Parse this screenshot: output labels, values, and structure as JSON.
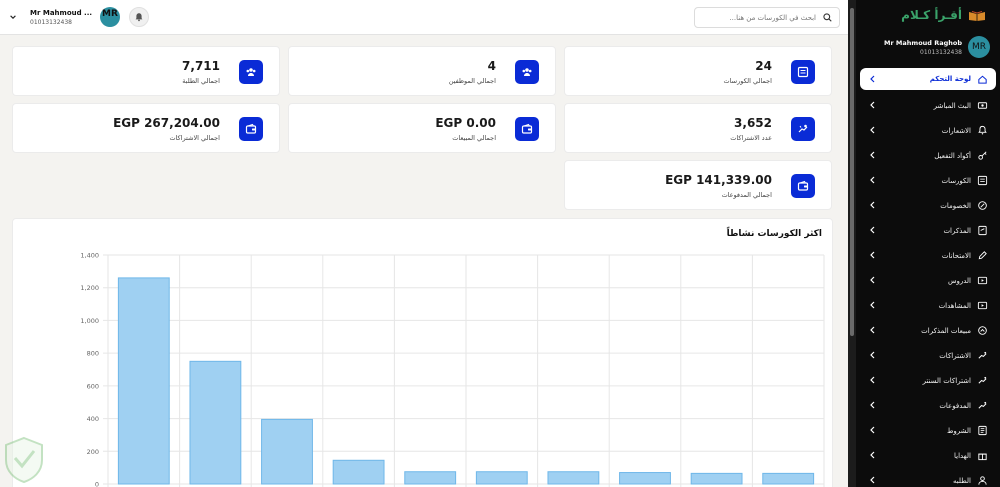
{
  "topbar": {
    "search_placeholder": "ابحث في الكورسات من هنا...",
    "user_name": "Mr Mahmoud ...",
    "user_phone": "01013132438",
    "avatar_initials": "MR"
  },
  "stats": [
    {
      "id": "courses",
      "value": "24",
      "label": "اجمالي الكورسات",
      "icon": "courses-icon"
    },
    {
      "id": "employees",
      "value": "4",
      "label": "اجمالي الموظفين",
      "icon": "users-icon"
    },
    {
      "id": "students",
      "value": "7,711",
      "label": "اجمالي الطلبة",
      "icon": "users-icon"
    },
    {
      "id": "subs-count",
      "value": "3,652",
      "label": "عدد الاشتراكات",
      "icon": "hand-coin-icon"
    },
    {
      "id": "sales",
      "value": "EGP 0.00",
      "label": "اجمالي المبيعات",
      "icon": "wallet-icon"
    },
    {
      "id": "subs-total",
      "value": "EGP 267,204.00",
      "label": "اجمالي الاشتراكات",
      "icon": "wallet-icon"
    },
    {
      "id": "payments",
      "value": "EGP 141,339.00",
      "label": "اجمالي المدفوعات",
      "icon": "wallet-icon"
    }
  ],
  "chart_title": "اكثر الكورسات نشاطاً",
  "chart_data": {
    "type": "bar",
    "title": "اكثر الكورسات نشاطاً",
    "categories": [
      "",
      "",
      "",
      "",
      "",
      "",
      "",
      "",
      "",
      ""
    ],
    "values": [
      1260,
      750,
      395,
      145,
      75,
      75,
      75,
      70,
      65,
      65
    ],
    "ylim": [
      0,
      1400
    ],
    "yticks": [
      "0",
      "200",
      "400",
      "600",
      "800",
      "1,000",
      "1,200",
      "1,400"
    ],
    "grid": true,
    "bar_color": "#9fd0f2",
    "bar_border": "#6fb7e9"
  },
  "sidebar": {
    "brand": "أقـرأ كـلام",
    "user_name": "Mr Mahmoud Raghob",
    "user_phone": "01013132438",
    "avatar_initials": "MR",
    "items": [
      {
        "label": "لوحة التحكم",
        "icon": "home-icon",
        "active": true
      },
      {
        "label": "البث المباشر",
        "icon": "live-icon"
      },
      {
        "label": "الاشعارات",
        "icon": "bell-icon"
      },
      {
        "label": "أكواد التفعيل",
        "icon": "key-icon"
      },
      {
        "label": "الكورسات",
        "icon": "courses-icon"
      },
      {
        "label": "الخصومات",
        "icon": "discount-icon"
      },
      {
        "label": "المذكرات",
        "icon": "notes-icon"
      },
      {
        "label": "الامتحانات",
        "icon": "exam-icon"
      },
      {
        "label": "الدروس",
        "icon": "lessons-icon"
      },
      {
        "label": "المشاهدات",
        "icon": "views-icon"
      },
      {
        "label": "مبيعات المذكرات",
        "icon": "sales-icon"
      },
      {
        "label": "الاشتراكات",
        "icon": "subscriptions-icon"
      },
      {
        "label": "اشتراكات السنتر",
        "icon": "center-icon"
      },
      {
        "label": "المدفوعات",
        "icon": "payments-icon"
      },
      {
        "label": "الشروط",
        "icon": "terms-icon"
      },
      {
        "label": "الهدايا",
        "icon": "gift-icon"
      },
      {
        "label": "الطلبه",
        "icon": "students-icon"
      }
    ]
  }
}
